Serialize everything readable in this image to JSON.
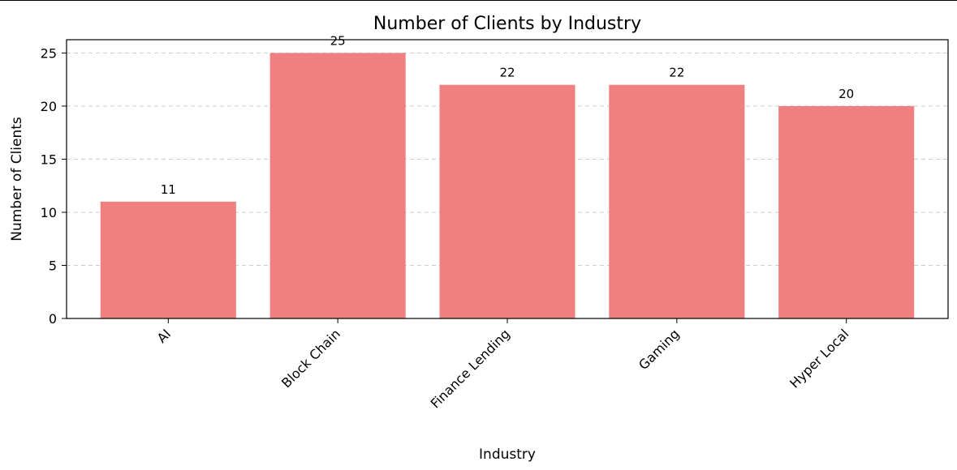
{
  "chart_data": {
    "type": "bar",
    "title": "Number of Clients by Industry",
    "xlabel": "Industry",
    "ylabel": "Number of Clients",
    "categories": [
      "AI",
      "Block Chain",
      "Finance Lending",
      "Gaming",
      "Hyper Local"
    ],
    "values": [
      11,
      25,
      22,
      22,
      20
    ],
    "ylim": [
      0,
      26.25
    ],
    "yticks": [
      0,
      5,
      10,
      15,
      20,
      25
    ],
    "grid": "y-dashed",
    "bar_color": "#f08080",
    "grid_color": "#cccccc",
    "x_tick_rotation": 45,
    "data_labels": true
  }
}
